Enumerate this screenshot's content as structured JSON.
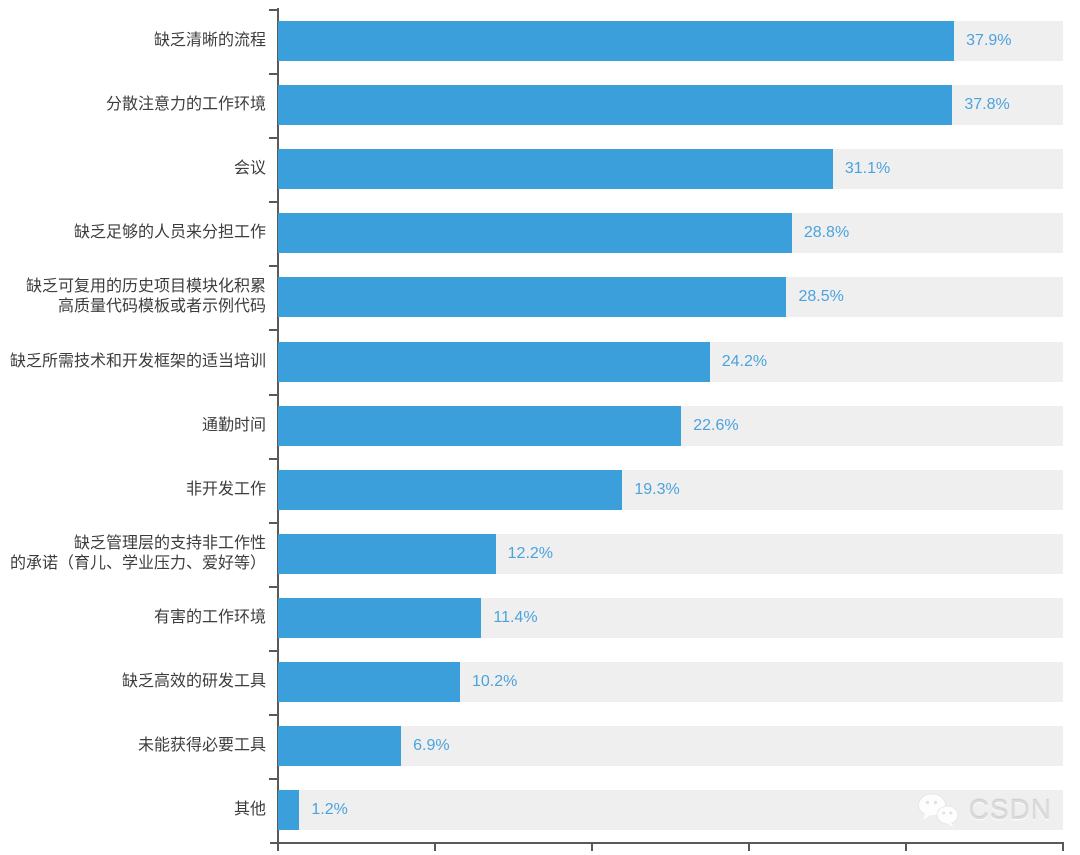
{
  "watermark": {
    "icon": "wechat-icon",
    "text": "CSDN"
  },
  "colors": {
    "bar": "#3b9fdb",
    "value_text": "#4ba3de",
    "track": "#efefef",
    "axis": "#58595b",
    "label_text": "#3d3d3d"
  },
  "chart_data": {
    "type": "bar",
    "orientation": "horizontal",
    "title": "",
    "xlabel": "",
    "ylabel": "",
    "categories": [
      "缺乏清晰的流程",
      "分散注意力的工作环境",
      "会议",
      "缺乏足够的人员来分担工作",
      "缺乏可复用的历史项目模块化积累\n高质量代码模板或者示例代码",
      "缺乏所需技术和开发框架的适当培训",
      "通勤时间",
      "非开发工作",
      "缺乏管理层的支持非工作性\n的承诺（育儿、学业压力、爱好等）",
      "有害的工作环境",
      "缺乏高效的研发工具",
      "未能获得必要工具",
      "其他"
    ],
    "values": [
      37.9,
      37.8,
      31.1,
      28.8,
      28.5,
      24.2,
      22.6,
      19.3,
      12.2,
      11.4,
      10.2,
      6.9,
      1.2
    ],
    "value_labels": [
      "37.9%",
      "37.8%",
      "31.1%",
      "28.8%",
      "28.5%",
      "24.2%",
      "22.6%",
      "19.3%",
      "12.2%",
      "11.4%",
      "10.2%",
      "6.9%",
      "1.2%"
    ],
    "xlim": [
      0,
      44
    ],
    "x_tick_count": 6,
    "grid": false,
    "legend": "none",
    "bar_background_track": true
  }
}
